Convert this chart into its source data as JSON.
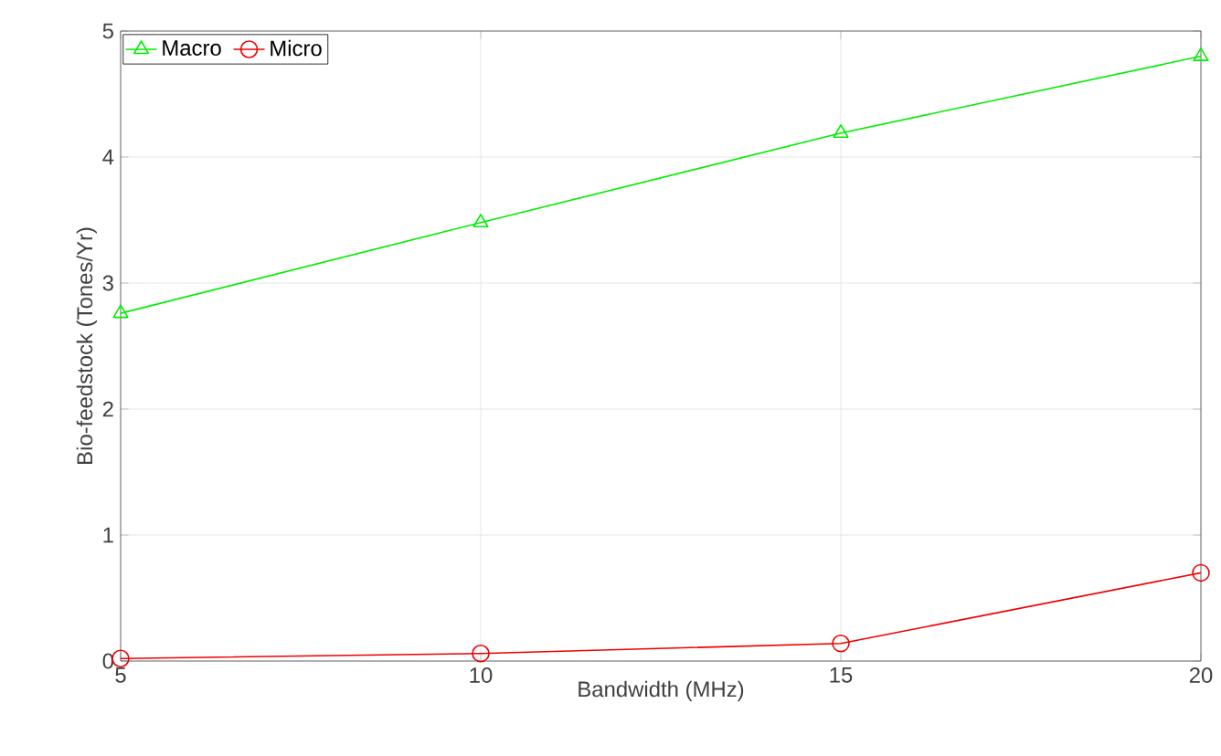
{
  "chart_data": {
    "type": "line",
    "xlabel": "Bandwidth (MHz)",
    "ylabel": "Bio-feedstock (Tones/Yr)",
    "x": [
      5,
      10,
      15,
      20
    ],
    "series": [
      {
        "name": "Macro",
        "color": "#00ee00",
        "marker": "triangle",
        "values": [
          2.76,
          3.48,
          4.19,
          4.8
        ]
      },
      {
        "name": "Micro",
        "color": "#ee0000",
        "marker": "circle",
        "values": [
          0.02,
          0.06,
          0.14,
          0.7
        ]
      }
    ],
    "xlim": [
      5,
      20
    ],
    "ylim": [
      0,
      5
    ],
    "xticks": [
      5,
      10,
      15,
      20
    ],
    "yticks": [
      0,
      1,
      2,
      3,
      4,
      5
    ],
    "grid": true,
    "legend": "top left",
    "line_style": "solid"
  }
}
